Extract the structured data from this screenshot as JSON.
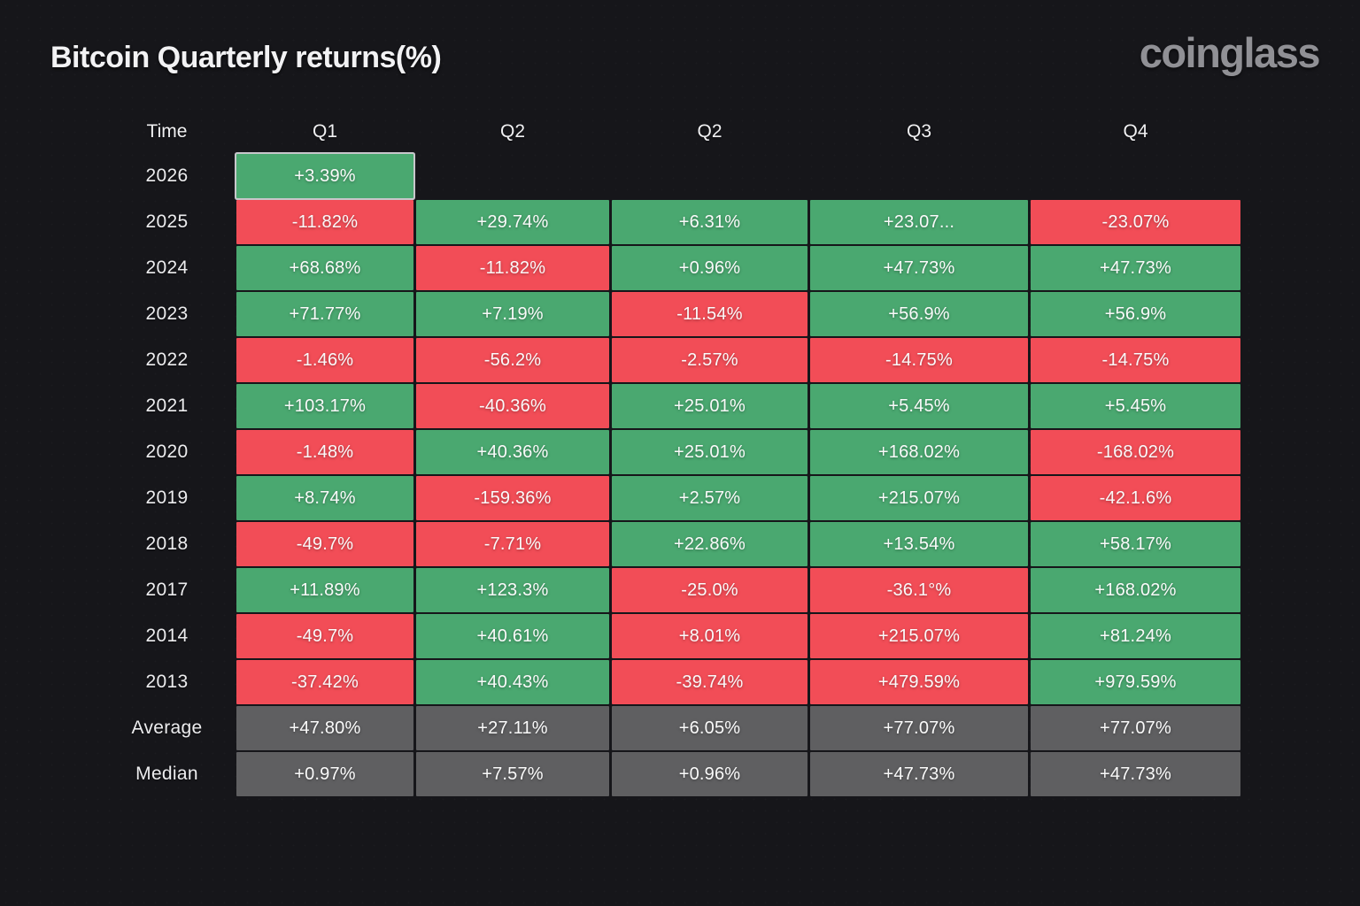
{
  "page": {
    "title": "Bitcoin Quarterly returns(%)",
    "brand": "coinglass"
  },
  "colors": {
    "green": "#4AA870",
    "red": "#F24D57",
    "gray": "#5F5F61",
    "background": "#16161a"
  },
  "chart_data": {
    "type": "table",
    "title": "Bitcoin Quarterly returns(%)",
    "columns": [
      "Time",
      "Q1",
      "Q2",
      "Q2",
      "Q3",
      "Q4"
    ],
    "rows": [
      {
        "label": "2026",
        "cells": [
          {
            "text": "+3.39%",
            "color": "green",
            "highlight": true
          },
          null,
          null,
          null,
          null
        ]
      },
      {
        "label": "2025",
        "cells": [
          {
            "text": "-11.82%",
            "color": "red"
          },
          {
            "text": "+29.74%",
            "color": "green"
          },
          {
            "text": "+6.31%",
            "color": "green"
          },
          {
            "text": "+23.07...",
            "color": "green"
          },
          {
            "text": "-23.07%",
            "color": "red"
          }
        ]
      },
      {
        "label": "2024",
        "cells": [
          {
            "text": "+68.68%",
            "color": "green"
          },
          {
            "text": "-11.82%",
            "color": "red"
          },
          {
            "text": "+0.96%",
            "color": "green"
          },
          {
            "text": "+47.73%",
            "color": "green"
          },
          {
            "text": "+47.73%",
            "color": "green"
          }
        ]
      },
      {
        "label": "2023",
        "cells": [
          {
            "text": "+71.77%",
            "color": "green"
          },
          {
            "text": "+7.19%",
            "color": "green"
          },
          {
            "text": "-11.54%",
            "color": "red"
          },
          {
            "text": "+56.9%",
            "color": "green"
          },
          {
            "text": "+56.9%",
            "color": "green"
          }
        ]
      },
      {
        "label": "2022",
        "cells": [
          {
            "text": "-1.46%",
            "color": "red"
          },
          {
            "text": "-56.2%",
            "color": "red"
          },
          {
            "text": "-2.57%",
            "color": "red"
          },
          {
            "text": "-14.75%",
            "color": "red"
          },
          {
            "text": "-14.75%",
            "color": "red"
          }
        ]
      },
      {
        "label": "2021",
        "cells": [
          {
            "text": "+103.17%",
            "color": "green"
          },
          {
            "text": "-40.36%",
            "color": "red"
          },
          {
            "text": "+25.01%",
            "color": "green"
          },
          {
            "text": "+5.45%",
            "color": "green"
          },
          {
            "text": "+5.45%",
            "color": "green"
          }
        ]
      },
      {
        "label": "2020",
        "cells": [
          {
            "text": "-1.48%",
            "color": "red"
          },
          {
            "text": "+40.36%",
            "color": "green"
          },
          {
            "text": "+25.01%",
            "color": "green"
          },
          {
            "text": "+168.02%",
            "color": "green"
          },
          {
            "text": "-168.02%",
            "color": "red"
          }
        ]
      },
      {
        "label": "2019",
        "cells": [
          {
            "text": "+8.74%",
            "color": "green"
          },
          {
            "text": "-159.36%",
            "color": "red"
          },
          {
            "text": "+2.57%",
            "color": "green"
          },
          {
            "text": "+215.07%",
            "color": "green"
          },
          {
            "text": "-42.1.6%",
            "color": "red"
          }
        ]
      },
      {
        "label": "2018",
        "cells": [
          {
            "text": "-49.7%",
            "color": "red"
          },
          {
            "text": "-7.71%",
            "color": "red"
          },
          {
            "text": "+22.86%",
            "color": "green"
          },
          {
            "text": "+13.54%",
            "color": "green"
          },
          {
            "text": "+58.17%",
            "color": "green"
          }
        ]
      },
      {
        "label": "2017",
        "cells": [
          {
            "text": "+11.89%",
            "color": "green"
          },
          {
            "text": "+123.3%",
            "color": "green"
          },
          {
            "text": "-25.0%",
            "color": "red"
          },
          {
            "text": "-36.1°%",
            "color": "red"
          },
          {
            "text": "+168.02%",
            "color": "green"
          }
        ]
      },
      {
        "label": "2014",
        "cells": [
          {
            "text": "-49.7%",
            "color": "red"
          },
          {
            "text": "+40.61%",
            "color": "green"
          },
          {
            "text": "+8.01%",
            "color": "red"
          },
          {
            "text": "+215.07%",
            "color": "red"
          },
          {
            "text": "+81.24%",
            "color": "green"
          }
        ]
      },
      {
        "label": "2013",
        "cells": [
          {
            "text": "-37.42%",
            "color": "red"
          },
          {
            "text": "+40.43%",
            "color": "green"
          },
          {
            "text": "-39.74%",
            "color": "red"
          },
          {
            "text": "+479.59%",
            "color": "red"
          },
          {
            "text": "+979.59%",
            "color": "green"
          }
        ]
      },
      {
        "label": "Average",
        "cells": [
          {
            "text": "+47.80%",
            "color": "gray"
          },
          {
            "text": "+27.11%",
            "color": "gray"
          },
          {
            "text": "+6.05%",
            "color": "gray"
          },
          {
            "text": "+77.07%",
            "color": "gray"
          },
          {
            "text": "+77.07%",
            "color": "gray"
          }
        ]
      },
      {
        "label": "Median",
        "cells": [
          {
            "text": "+0.97%",
            "color": "gray"
          },
          {
            "text": "+7.57%",
            "color": "gray"
          },
          {
            "text": "+0.96%",
            "color": "gray"
          },
          {
            "text": "+47.73%",
            "color": "gray"
          },
          {
            "text": "+47.73%",
            "color": "gray"
          }
        ]
      }
    ]
  }
}
